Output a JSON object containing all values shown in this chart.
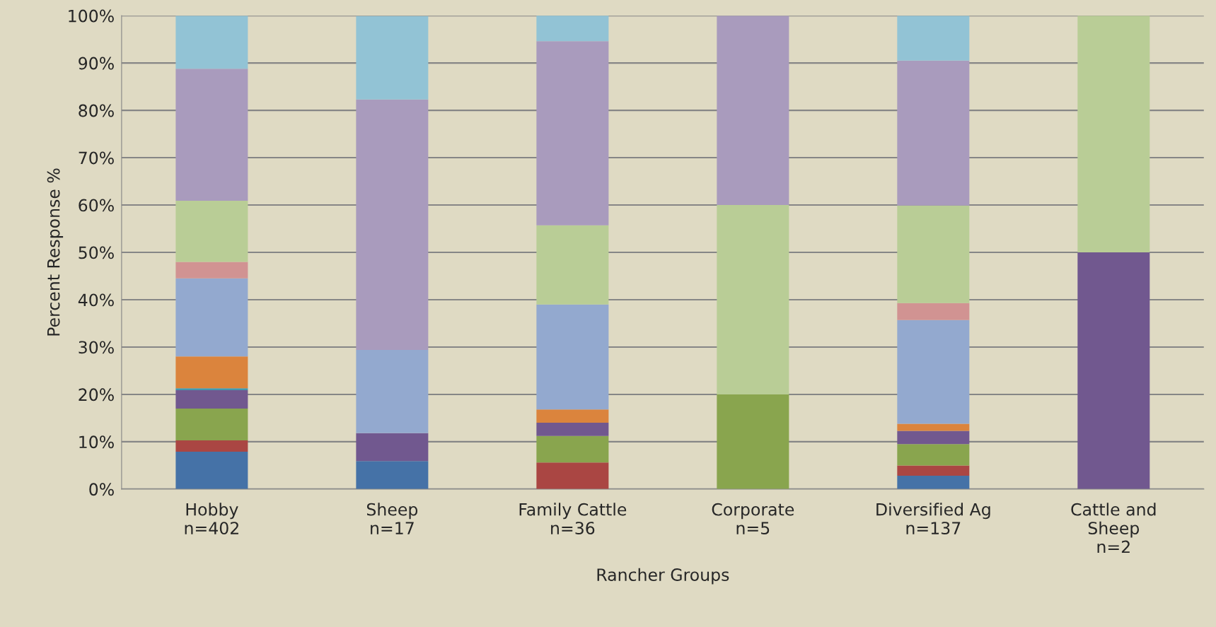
{
  "chart_data": {
    "type": "bar",
    "stacked": true,
    "xlabel": "Rancher Groups",
    "ylabel": "Percent Response %",
    "categories": [
      "Hobby\nn=402",
      "Sheep\nn=17",
      "Family Cattle\nn=36",
      "Corporate\nn=5",
      "Diversified Ag\nn=137",
      "Cattle and\nSheep\nn=2"
    ],
    "ylim": [
      0,
      100
    ],
    "yticks": [
      {
        "value": 0,
        "label": "0%"
      },
      {
        "value": 10,
        "label": "10%"
      },
      {
        "value": 20,
        "label": "20%"
      },
      {
        "value": 30,
        "label": "30%"
      },
      {
        "value": 40,
        "label": "40%"
      },
      {
        "value": 50,
        "label": "50%"
      },
      {
        "value": 60,
        "label": "60%"
      },
      {
        "value": 70,
        "label": "70%"
      },
      {
        "value": 80,
        "label": "80%"
      },
      {
        "value": 90,
        "label": "90%"
      },
      {
        "value": 100,
        "label": "100%"
      }
    ],
    "grid": "y",
    "legend": false,
    "series": [
      {
        "color": "#4572a7",
        "values": [
          7.9,
          5.9,
          0,
          0,
          2.8,
          0
        ]
      },
      {
        "color": "#aa4643",
        "values": [
          2.4,
          0,
          5.6,
          0,
          2.2,
          0
        ]
      },
      {
        "color": "#89a54e",
        "values": [
          6.7,
          0,
          5.6,
          20,
          4.5,
          0
        ]
      },
      {
        "color": "#71588f",
        "values": [
          3.9,
          5.9,
          2.8,
          0,
          2.8,
          50
        ]
      },
      {
        "color": "#4198af",
        "values": [
          0.4,
          0,
          0,
          0,
          0,
          0
        ]
      },
      {
        "color": "#db843d",
        "values": [
          6.7,
          0,
          2.8,
          0,
          1.5,
          0
        ]
      },
      {
        "color": "#93a9cf",
        "values": [
          16.5,
          17.6,
          22.2,
          0,
          21.9,
          0
        ]
      },
      {
        "color": "#d19392",
        "values": [
          3.5,
          0,
          0,
          0,
          3.6,
          0
        ]
      },
      {
        "color": "#b9cd96",
        "values": [
          12.9,
          0,
          16.7,
          40,
          20.6,
          50
        ]
      },
      {
        "color": "#a99bbd",
        "values": [
          27.9,
          52.9,
          38.9,
          40,
          30.6,
          0
        ]
      },
      {
        "color": "#92c3d5",
        "values": [
          11.2,
          17.6,
          5.6,
          0,
          9.5,
          0
        ]
      }
    ]
  }
}
